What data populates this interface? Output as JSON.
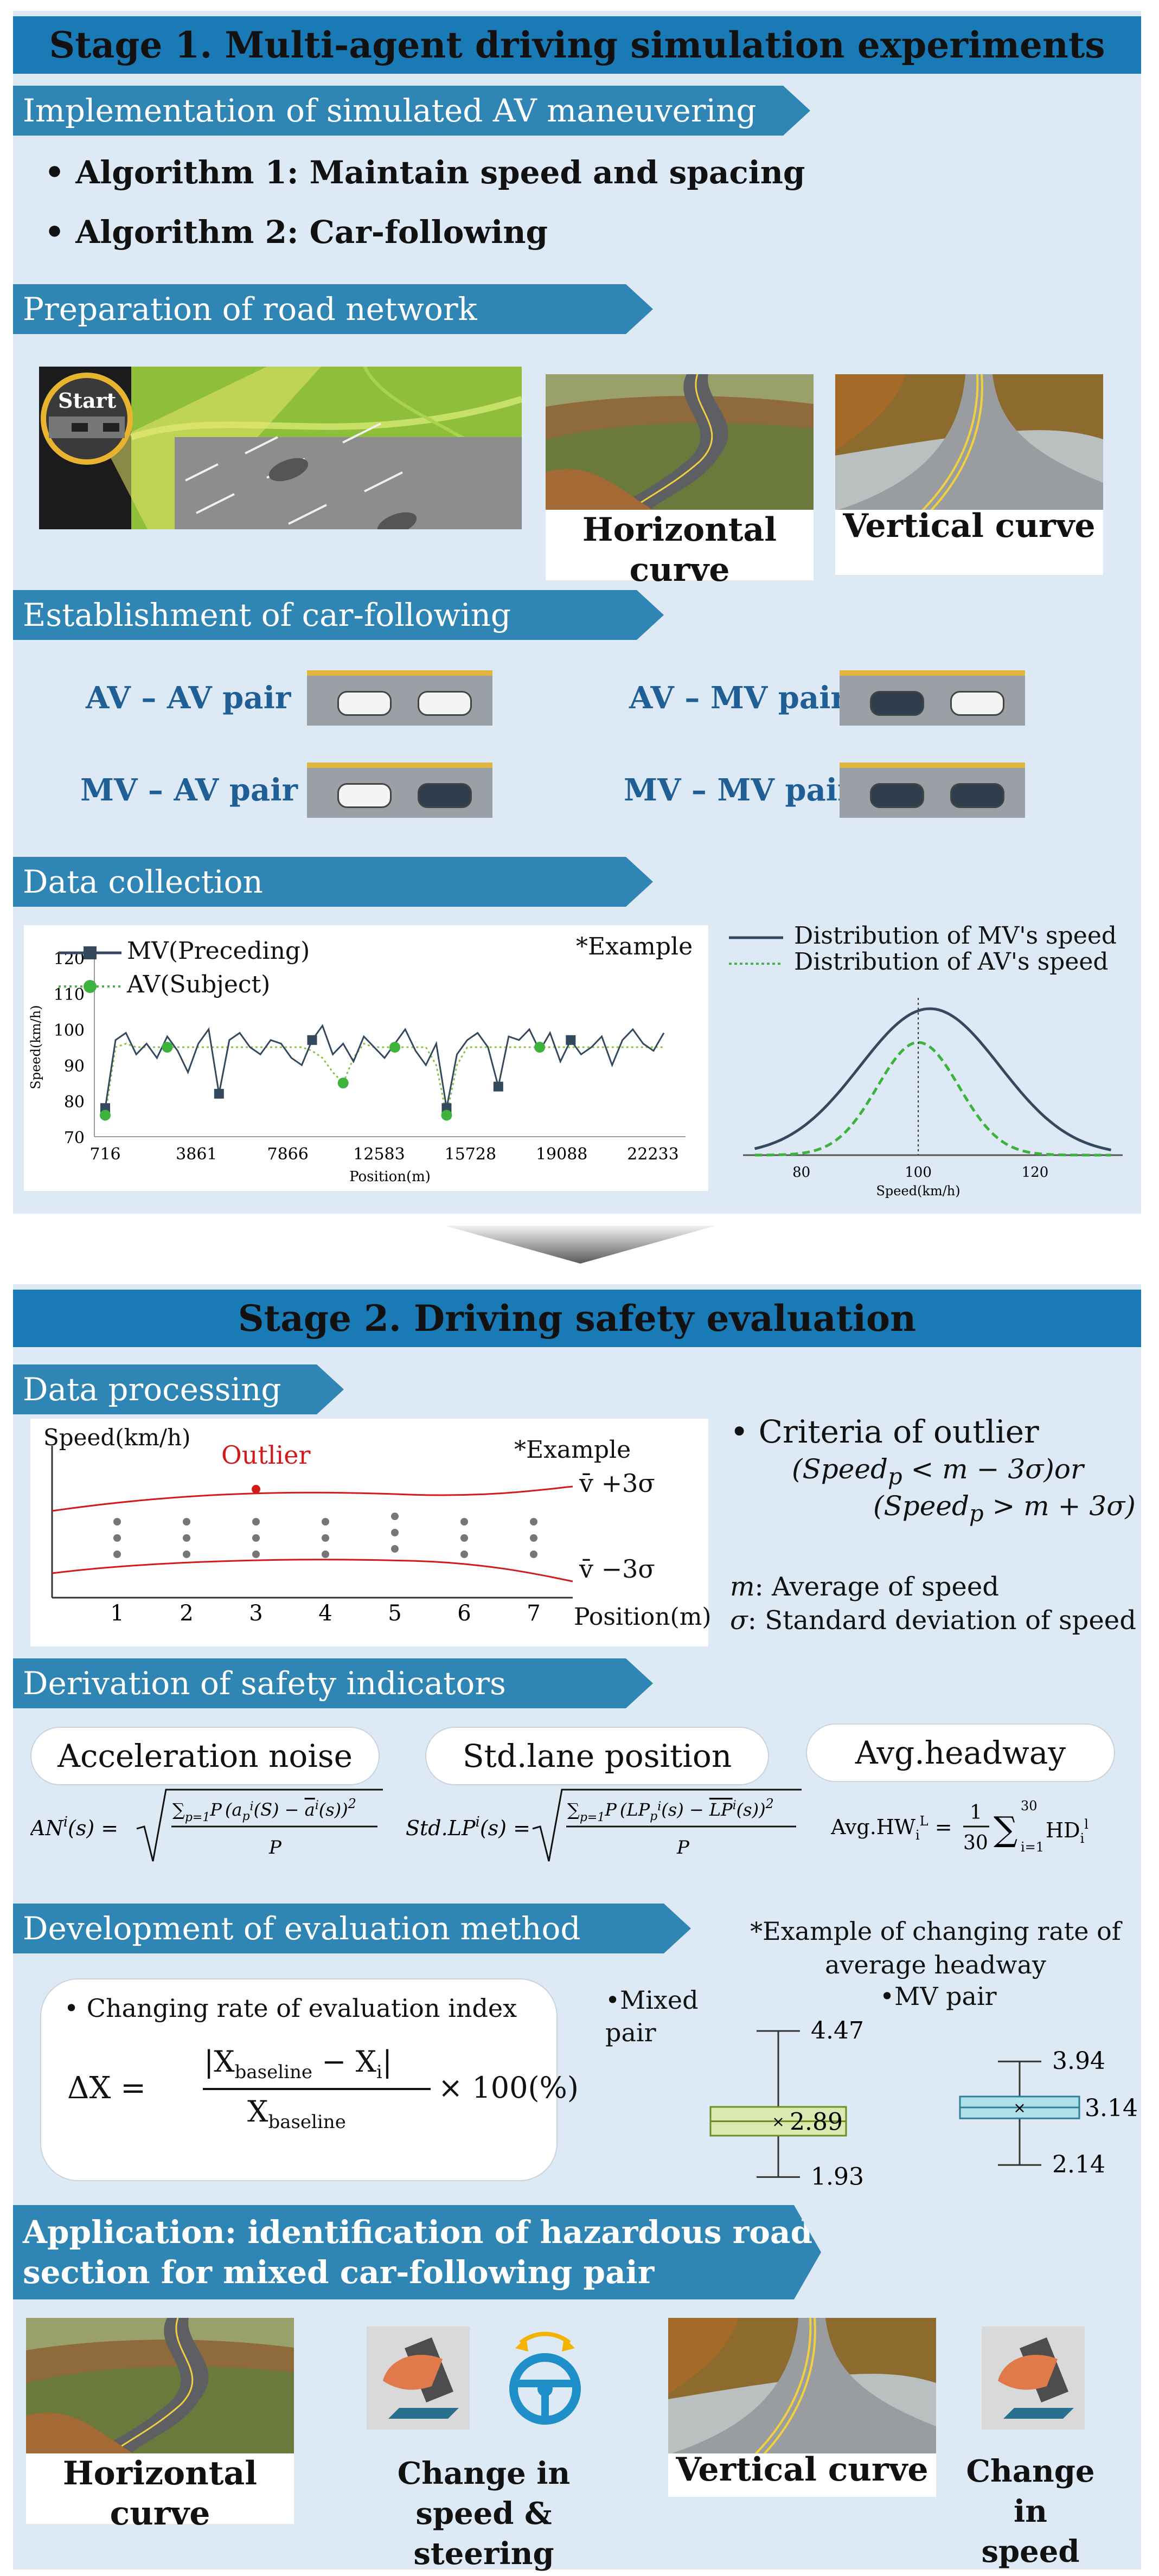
{
  "stage1": {
    "title": "Stage 1. Multi-agent driving simulation experiments",
    "implementation": {
      "header": "Implementation of simulated AV maneuvering",
      "algorithms": [
        "Algorithm 1: Maintain speed and spacing",
        "Algorithm 2: Car-following"
      ]
    },
    "road_network": {
      "header": "Preparation of road network",
      "start_label": "Start",
      "horizontal_curve": "Horizontal curve",
      "vertical_curve": "Vertical curve"
    },
    "scenarios": {
      "header": "Establishment of car-following scenarios",
      "pairs": [
        "AV – AV pair",
        "AV – MV pair",
        "MV – AV pair",
        "MV – MV pair"
      ]
    },
    "data_collection": {
      "header": "Data collection",
      "example": "*Example",
      "legend_mv": "MV(Preceding)",
      "legend_av": "AV(Subject)",
      "dist_mv": "Distribution of MV's speed",
      "dist_av": "Distribution of AV's speed"
    }
  },
  "stage2": {
    "title": "Stage 2. Driving safety evaluation",
    "data_processing": {
      "header": "Data processing",
      "ylabel": "Speed(km/h)",
      "outlier": "Outlier",
      "example": "*Example",
      "upper": "v̄ +3σ",
      "lower": "v̄ −3σ",
      "xlabel": "Position(m)",
      "criteria_title": "• Criteria of outlier",
      "criteria_1": "(Speed",
      "criteria_1_sub": "p",
      "criteria_1_rest": " < m − 3σ)or",
      "criteria_2": "(Speed",
      "criteria_2_sub": "p",
      "criteria_2_rest": " > m + 3σ)",
      "m_def_sym": "m",
      "m_def": ": Average of speed",
      "s_def_sym": "σ",
      "s_def": ": Standard deviation of speed"
    },
    "indicators": {
      "header": "Derivation of safety indicators",
      "names": [
        "Acceleration noise",
        "Std.lane position",
        "Avg.headway"
      ]
    },
    "evaluation": {
      "header": "Development of evaluation method",
      "example_title": "*Example of changing rate of average headway",
      "bullet": "• Changing rate of evaluation index",
      "delta": "ΔX =",
      "numerator": "|X",
      "numerator_sub1": "baseline",
      "numerator_mid": " − X",
      "numerator_sub2": "i",
      "numerator_end": "|",
      "denominator": "X",
      "denominator_sub": "baseline",
      "times": "× 100(%)",
      "mixed_label": "•Mixed pair",
      "mv_label": "•MV pair"
    },
    "application": {
      "header": "Application: identification of hazardous road section for mixed car-following pair",
      "labels": [
        "Horizontal curve",
        "Change in speed & steering",
        "Vertical curve",
        "Change in speed"
      ]
    }
  },
  "chart_data": [
    {
      "type": "line",
      "title": "",
      "xlabel": "Position(m)",
      "ylabel": "Speed(km/h)",
      "x_ticks": [
        "716",
        "3861",
        "7866",
        "12583",
        "15728",
        "19088",
        "22233"
      ],
      "y_ticks": [
        70,
        80,
        90,
        100,
        110,
        120
      ],
      "ylim": [
        70,
        120
      ],
      "series": [
        {
          "name": "MV(Preceding)",
          "marker": "square",
          "values": [
            78,
            97,
            99,
            93,
            96,
            92,
            98,
            94,
            88,
            96,
            100,
            82,
            97,
            99,
            95,
            93,
            97,
            96,
            92,
            90,
            97,
            101,
            93,
            96,
            91,
            98,
            95,
            92,
            96,
            100,
            94,
            90,
            96,
            78,
            93,
            97,
            99,
            95,
            84,
            98,
            97,
            100,
            94,
            99,
            91,
            97,
            93,
            95,
            98,
            90,
            97,
            100,
            96,
            94,
            99
          ]
        },
        {
          "name": "AV(Subject)",
          "marker": "circle",
          "values": [
            76,
            95,
            96,
            95,
            95,
            95,
            95,
            95,
            95,
            95,
            95,
            95,
            95,
            95,
            95,
            95,
            95,
            95,
            95,
            95,
            94,
            92,
            88,
            85,
            92,
            96,
            95,
            95,
            95,
            95,
            95,
            95,
            90,
            76,
            90,
            95,
            95,
            95,
            95,
            95,
            95,
            95,
            95,
            95,
            95,
            95,
            95,
            95,
            95,
            95,
            95,
            95,
            95,
            95,
            95
          ]
        }
      ]
    },
    {
      "type": "line",
      "title": "",
      "xlabel": "Speed(km/h)",
      "x_ticks": [
        80,
        100,
        120
      ],
      "xlim": [
        70,
        135
      ],
      "series": [
        {
          "name": "Distribution of MV's speed",
          "mean": 102,
          "sd": 12,
          "peak": 1.0
        },
        {
          "name": "Distribution of AV's speed",
          "mean": 100,
          "sd": 7,
          "peak": 0.77
        }
      ],
      "reference_x": 100
    },
    {
      "type": "scatter",
      "title": "",
      "xlabel": "Position(m)",
      "ylabel": "Speed(km/h)",
      "categories": [
        1,
        2,
        3,
        4,
        5,
        6,
        7
      ],
      "points": [
        [
          1,
          3
        ],
        [
          1,
          2
        ],
        [
          1,
          1
        ],
        [
          2,
          3
        ],
        [
          2,
          2
        ],
        [
          2,
          1
        ],
        [
          3,
          3
        ],
        [
          3,
          2
        ],
        [
          3,
          1
        ],
        [
          4,
          3
        ],
        [
          4,
          2
        ],
        [
          4,
          1
        ],
        [
          5,
          3
        ],
        [
          5,
          2
        ],
        [
          5,
          1
        ],
        [
          6,
          3
        ],
        [
          6,
          2
        ],
        [
          6,
          1
        ],
        [
          7,
          3
        ],
        [
          7,
          2
        ],
        [
          7,
          1
        ]
      ],
      "outlier": {
        "x": 3,
        "label": "Outlier"
      },
      "bands": [
        "v̄ +3σ",
        "v̄ −3σ"
      ]
    },
    {
      "type": "box",
      "title": "*Example of changing rate of average headway",
      "series": [
        {
          "name": "Mixed pair",
          "max": 4.47,
          "median": 2.89,
          "min": 1.93
        },
        {
          "name": "MV pair",
          "max": 3.94,
          "median": 3.14,
          "min": 2.14
        }
      ]
    }
  ]
}
